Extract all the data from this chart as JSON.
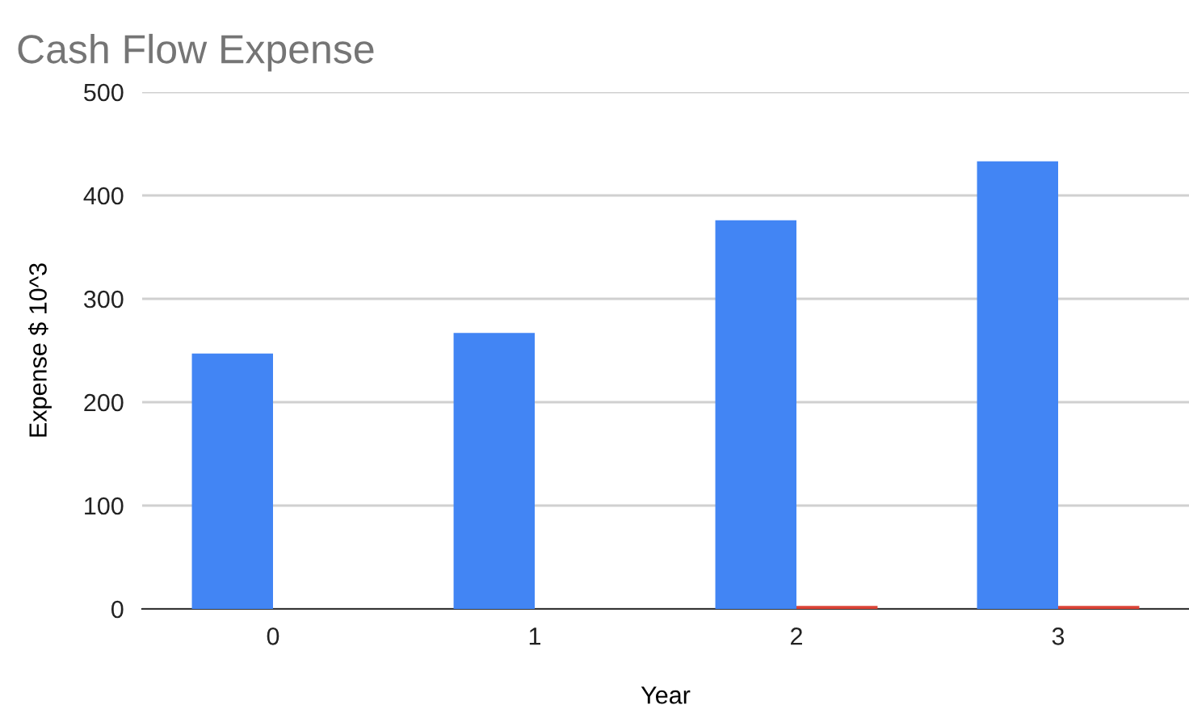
{
  "chart_data": {
    "type": "bar",
    "title": "Cash Flow Expense",
    "xlabel": "Year",
    "ylabel": "Expense $ 10^3",
    "categories": [
      "0",
      "1",
      "2",
      "3"
    ],
    "series": [
      {
        "color": "#4285f4",
        "values": [
          247,
          267,
          376,
          433
        ]
      },
      {
        "color": "#db4437",
        "values": [
          0,
          0,
          3,
          3
        ]
      }
    ],
    "ylim": [
      0,
      500
    ],
    "yticks": [
      0,
      100,
      200,
      300,
      400,
      500
    ],
    "grid": "y",
    "legend": false
  }
}
